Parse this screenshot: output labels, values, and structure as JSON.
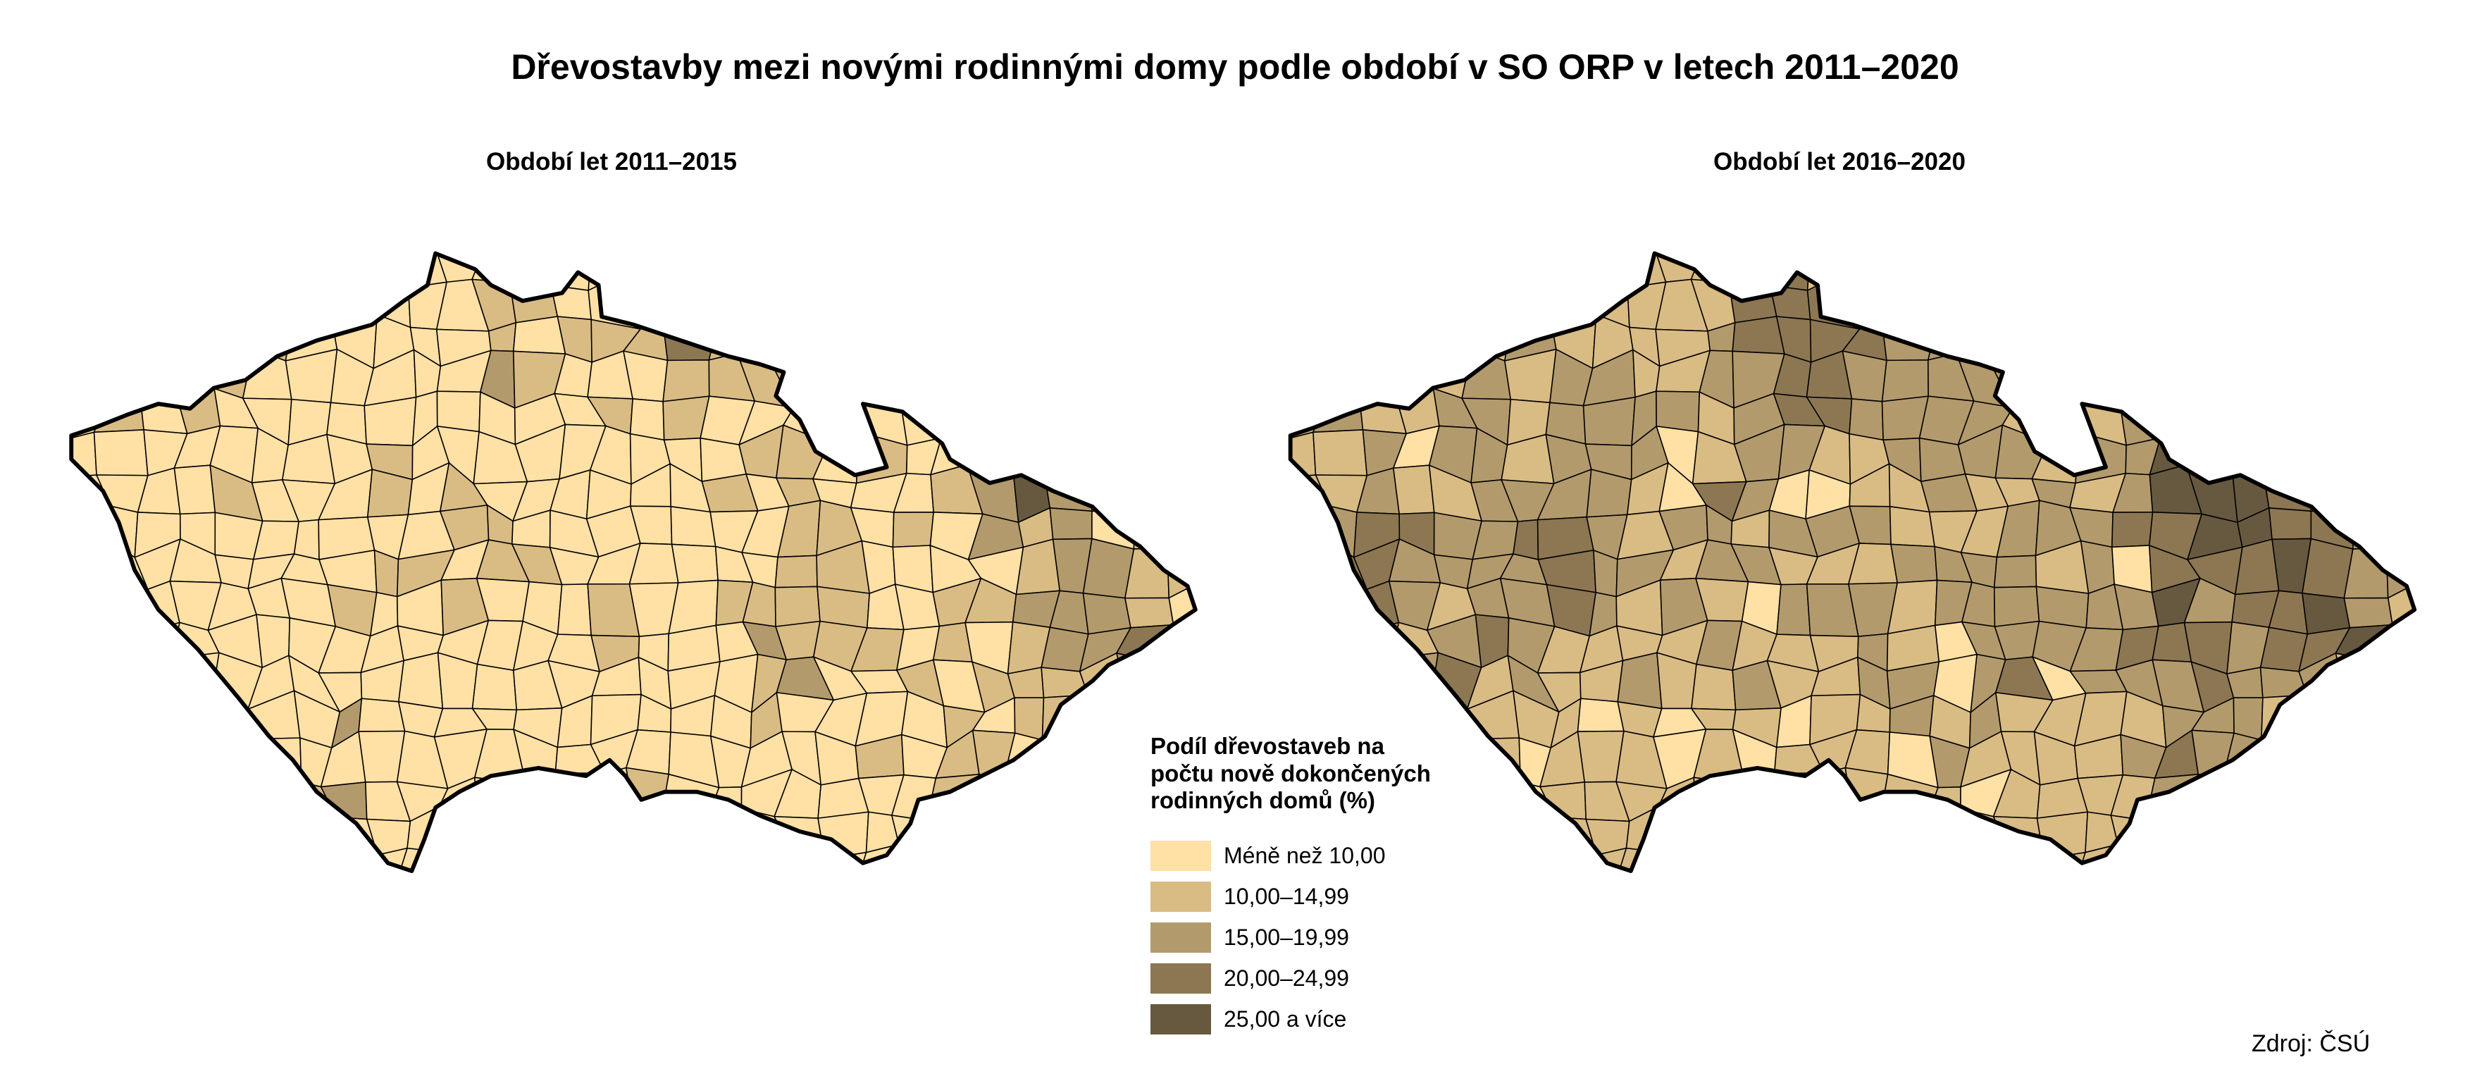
{
  "title": "Dřevostavby mezi novými rodinnými domy podle období v SO ORP v letech 2011–2020",
  "maps": [
    {
      "subtitle": "Období let 2011–2015",
      "class_grid": [
        "000000000000100000000000000000",
        "000000000001100130000000000000",
        "000001000001011131100000000000",
        "000110000002100011110000000000",
        "010100000000001010001000002100",
        "000000001000000000110100011000",
        "000010001010000001010001242100",
        "000000000011000000011010212011",
        "000000001101100000011000012211",
        "000000010010001001111001122210",
        "000000000000001000211101012231",
        "000000000000000000120010111121",
        "000000020000000000100001011110",
        "000000000000000000000101101100",
        "000000120000000100000001010000",
        "000000000000000000000000000000",
        "000000000000000000000000000000"
      ]
    },
    {
      "subtitle": "Období let 2016–2020",
      "class_grid": [
        "111111111111131211111111111111",
        "111111111111333333111111111111",
        "111111211112333322311111111111",
        "131212122112233222221112131111",
        "121122122221233222212122443111",
        "112022122201221122221224442111",
        "112112222103200112112124443211",
        "123322332122122211122233443321",
        "133222232212211122221203334322",
        "123212232121022212222224233421",
        "112123211112111210222233323341",
        "111231211211211220230222322211",
        "111221110101101121211112221111",
        "112021011101011102111123221111",
        "111101011111101111011112211111",
        "111100111111111111111111111111",
        "111111111111111111111111111111"
      ]
    }
  ],
  "legend": {
    "title": "Podíl dřevostaveb na počtu nově dokončených rodinných domů (%)",
    "items": [
      {
        "label": "Méně než 10,00",
        "color": "#FFE0A5"
      },
      {
        "label": "10,00–14,99",
        "color": "#D9BB84"
      },
      {
        "label": "15,00–19,99",
        "color": "#B39A6C"
      },
      {
        "label": "20,00–24,99",
        "color": "#8C7752"
      },
      {
        "label": "25,00 a více",
        "color": "#675940"
      }
    ]
  },
  "source": "Zdroj: ČSÚ"
}
